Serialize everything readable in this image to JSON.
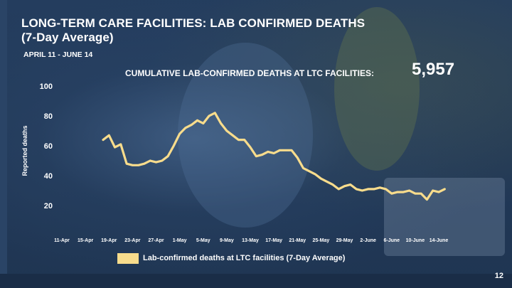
{
  "slide": {
    "title_line1": "LONG-TERM CARE FACILITIES: LAB CONFIRMED DEATHS",
    "title_line2": "(7-Day Average)",
    "subtitle": "APRIL 11 - JUNE 14",
    "cumulative_label": "CUMULATIVE LAB-CONFIRMED DEATHS AT LTC FACILITIES:",
    "cumulative_value": "5,957",
    "page_number": "12"
  },
  "colors": {
    "line": "#f8dc8c",
    "background": "#1f3552",
    "text": "#ffffff"
  },
  "chart_data": {
    "type": "line",
    "title": "LONG-TERM CARE FACILITIES: LAB CONFIRMED DEATHS (7-Day Average)",
    "xlabel": "",
    "ylabel": "Reported deaths",
    "ylim": [
      10,
      100
    ],
    "y_ticks": [
      20,
      40,
      60,
      80,
      100
    ],
    "x_ticks": [
      "11-Apr",
      "15-Apr",
      "19-Apr",
      "23-Apr",
      "27-Apr",
      "1-May",
      "5-May",
      "9-May",
      "13-May",
      "17-May",
      "21-May",
      "25-May",
      "29-May",
      "2-June",
      "6-June",
      "10-June",
      "14-June"
    ],
    "grid": false,
    "legend_position": "bottom",
    "series": [
      {
        "name": "Lab-confirmed deaths at LTC facilities (7-Day Average)",
        "x_start": "2020-04-18",
        "values": [
          64,
          67,
          59,
          61,
          48,
          47,
          47,
          48,
          50,
          49,
          50,
          53,
          60,
          68,
          72,
          74,
          77,
          75,
          80,
          82,
          75,
          70,
          67,
          64,
          64,
          59,
          53,
          54,
          56,
          55,
          57,
          57,
          57,
          52,
          45,
          43,
          41,
          38,
          36,
          34,
          31,
          33,
          34,
          31,
          30,
          31,
          31,
          32,
          31,
          28,
          29,
          29,
          30,
          28,
          28,
          24,
          30,
          29,
          31
        ]
      }
    ]
  },
  "legend": {
    "label": "Lab-confirmed deaths at LTC facilities (7-Day Average)"
  }
}
